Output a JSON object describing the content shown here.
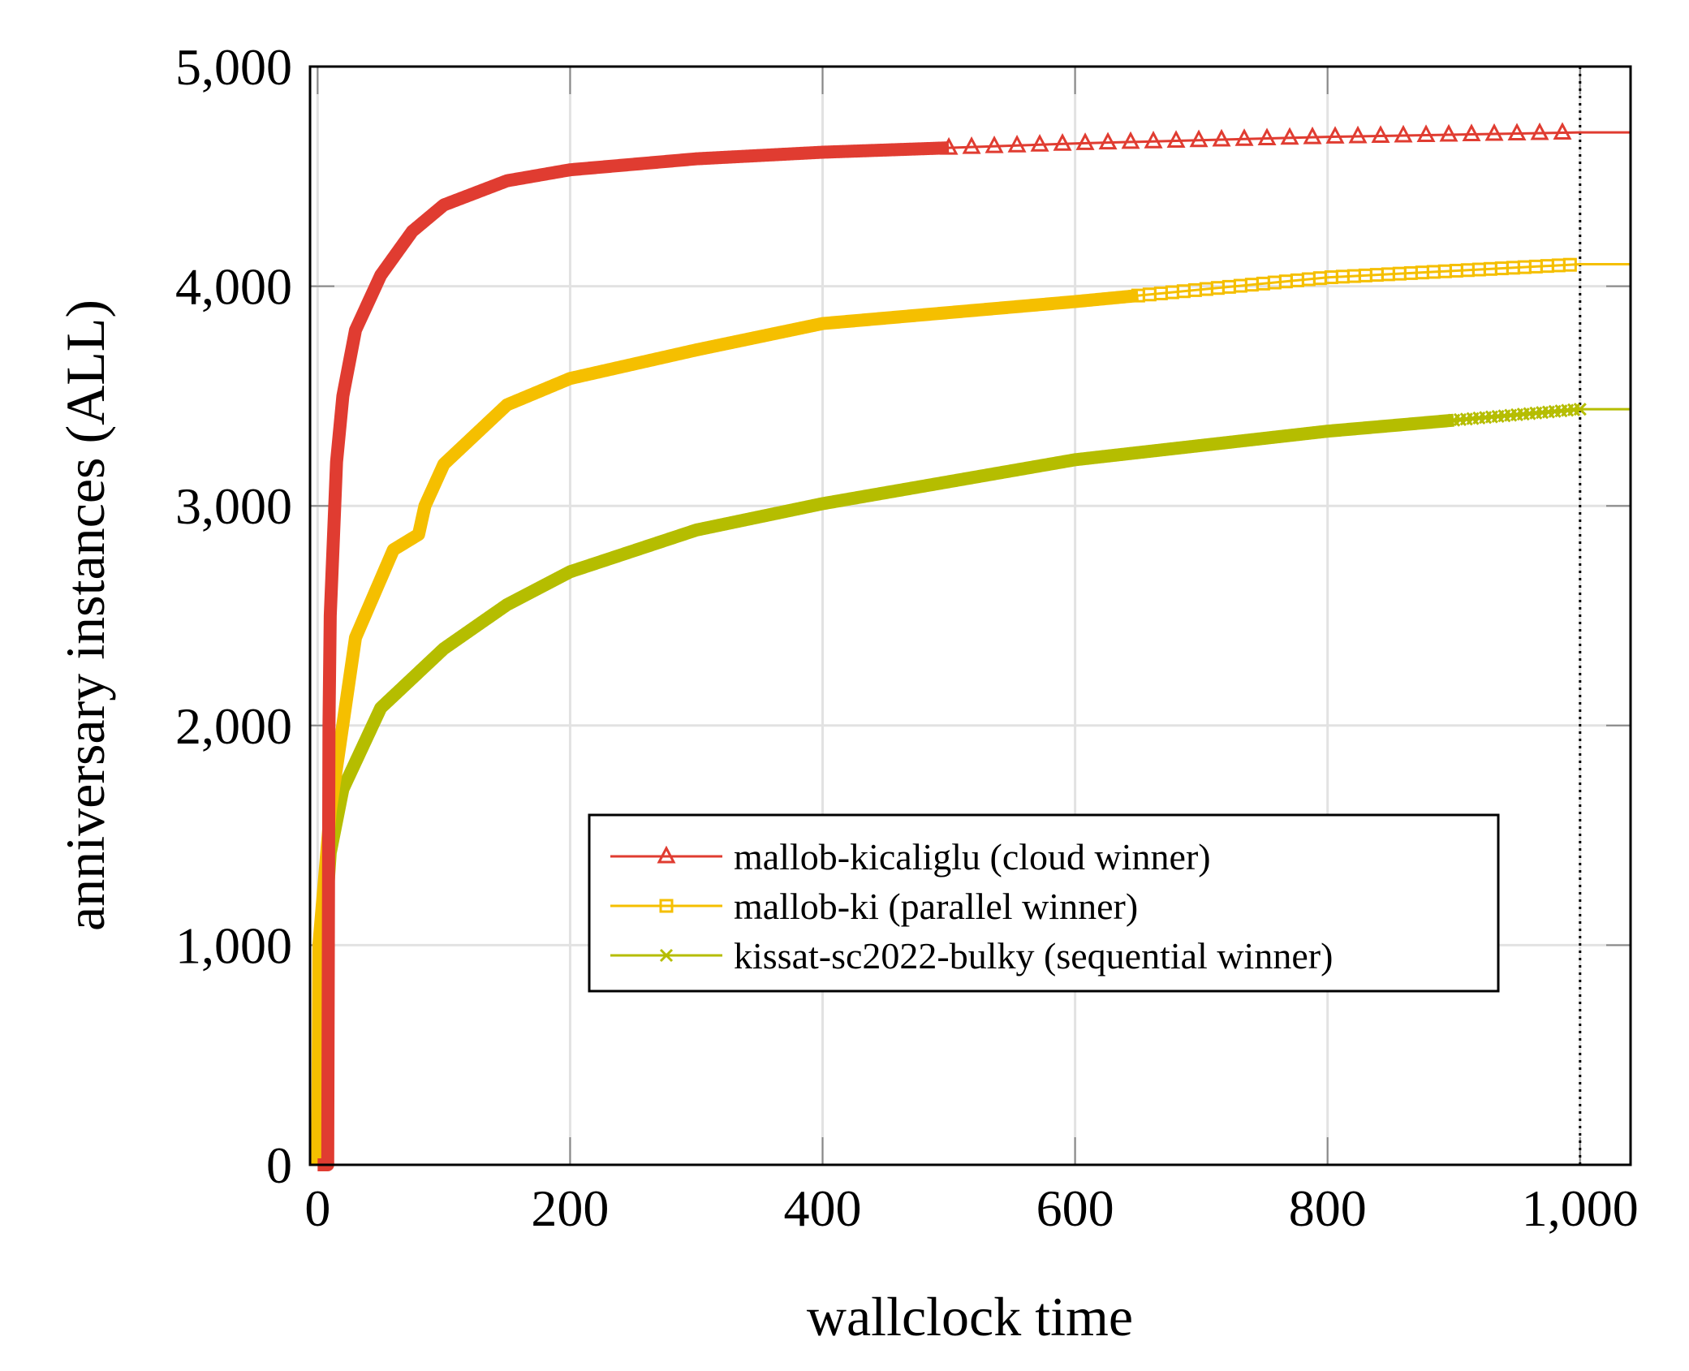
{
  "chart_data": {
    "type": "line",
    "title": "",
    "xlabel": "wallclock time",
    "ylabel": "anniversary instances (ALL)",
    "xlim": [
      -6,
      1040
    ],
    "ylim": [
      0,
      5000
    ],
    "xticks": [
      0,
      200,
      400,
      600,
      800,
      1000
    ],
    "xtick_labels": [
      "0",
      "200",
      "400",
      "600",
      "800",
      "1,000"
    ],
    "yticks": [
      0,
      1000,
      2000,
      3000,
      4000,
      5000
    ],
    "ytick_labels": [
      "0",
      "1,000",
      "2,000",
      "3,000",
      "4,000",
      "5,000"
    ],
    "grid": true,
    "vline": {
      "x": 1000,
      "style": "dotted"
    },
    "legend_position": "lower-right",
    "series": [
      {
        "name": "mallob-kicaliglu (cloud winner)",
        "color": "#e03c31",
        "marker": "triangle",
        "x": [
          0,
          8,
          8,
          10,
          15,
          20,
          30,
          50,
          75,
          100,
          150,
          200,
          300,
          400,
          600,
          800,
          1000,
          1040
        ],
        "y": [
          0,
          0,
          1500,
          2500,
          3200,
          3500,
          3800,
          4050,
          4250,
          4370,
          4480,
          4530,
          4580,
          4610,
          4650,
          4680,
          4700,
          4700
        ]
      },
      {
        "name": "mallob-ki (parallel winner)",
        "color": "#f5bf00",
        "marker": "square",
        "x": [
          0,
          1,
          10,
          30,
          60,
          80,
          85,
          100,
          150,
          200,
          300,
          400,
          600,
          800,
          1000,
          1040
        ],
        "y": [
          0,
          1000,
          1610,
          2400,
          2800,
          2870,
          3000,
          3190,
          3460,
          3580,
          3710,
          3830,
          3930,
          4040,
          4100,
          4100
        ]
      },
      {
        "name": "kissat-sc2022-bulky (sequential winner)",
        "color": "#b5bd00",
        "marker": "cross",
        "x": [
          0,
          1,
          5,
          10,
          20,
          50,
          100,
          150,
          200,
          300,
          400,
          600,
          800,
          1000,
          1040
        ],
        "y": [
          0,
          600,
          1000,
          1420,
          1710,
          2080,
          2350,
          2550,
          2700,
          2890,
          3010,
          3210,
          3340,
          3440,
          3440
        ]
      }
    ]
  }
}
